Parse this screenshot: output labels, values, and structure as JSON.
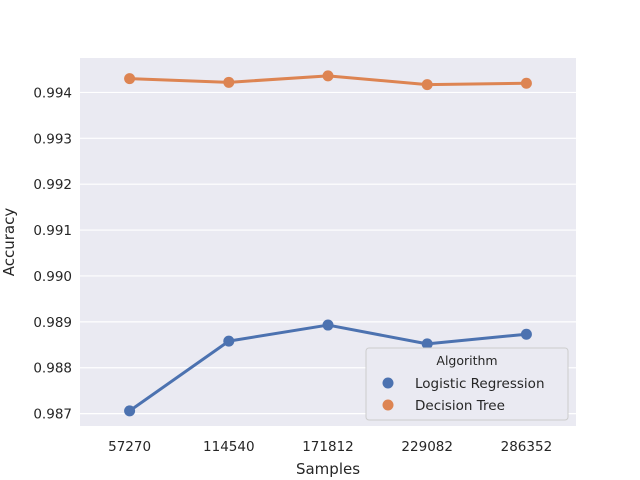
{
  "chart_data": {
    "type": "line",
    "title": "",
    "xlabel": "Samples",
    "ylabel": "Accuracy",
    "categories": [
      "57270",
      "114540",
      "171812",
      "229082",
      "286352"
    ],
    "ylim": [
      0.98673,
      0.99475
    ],
    "yticks": [
      "0.987",
      "0.988",
      "0.989",
      "0.990",
      "0.991",
      "0.992",
      "0.993",
      "0.994"
    ],
    "grid": true,
    "legend": {
      "title": "Algorithm",
      "placement": "lower right"
    },
    "series": [
      {
        "name": "Logistic Regression",
        "color": "#4c72b0",
        "values": [
          0.98706,
          0.98858,
          0.98893,
          0.98852,
          0.98873
        ]
      },
      {
        "name": "Decision Tree",
        "color": "#dd8452",
        "values": [
          0.9943,
          0.99422,
          0.99436,
          0.99417,
          0.9942
        ]
      }
    ]
  }
}
